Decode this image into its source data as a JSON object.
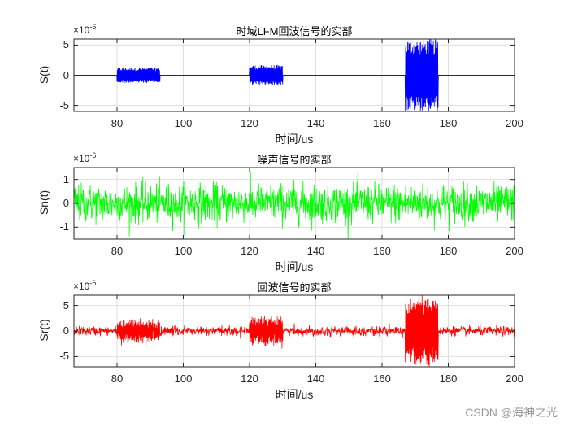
{
  "chart_data": [
    {
      "type": "line",
      "title": "时域LFM回波信号的实部",
      "xlabel": "时间/us",
      "ylabel": "S(t)",
      "y_exponent": "×10^-6",
      "xlim": [
        67,
        200
      ],
      "ylim": [
        -6,
        6
      ],
      "xticks": [
        80,
        100,
        120,
        140,
        160,
        180,
        200
      ],
      "yticks": [
        -5,
        0,
        5
      ],
      "grid": true,
      "color": "#0000ff",
      "description": "Three LFM pulse echoes (noise-free), zero elsewhere",
      "segments": [
        {
          "start_us": 80,
          "end_us": 93,
          "amplitude": 1.3
        },
        {
          "start_us": 120,
          "end_us": 130,
          "amplitude": 1.7
        },
        {
          "start_us": 167,
          "end_us": 177,
          "amplitude": 6.0
        }
      ]
    },
    {
      "type": "line",
      "title": "噪声信号的实部",
      "xlabel": "时间/us",
      "ylabel": "Sn(t)",
      "y_exponent": "×10^-6",
      "xlim": [
        67,
        200
      ],
      "ylim": [
        -1.5,
        1.5
      ],
      "xticks": [
        80,
        100,
        120,
        140,
        160,
        180,
        200
      ],
      "yticks": [
        -1,
        0,
        1
      ],
      "grid": true,
      "color": "#00ff00",
      "description": "Gaussian white noise across whole range, peaks about ±1.4",
      "noise_std": 0.4
    },
    {
      "type": "line",
      "title": "回波信号的实部",
      "xlabel": "时间/us",
      "ylabel": "Sr(t)",
      "y_exponent": "×10^-6",
      "xlim": [
        67,
        200
      ],
      "ylim": [
        -7,
        7
      ],
      "xticks": [
        80,
        100,
        120,
        140,
        160,
        180,
        200
      ],
      "yticks": [
        -5,
        0,
        5
      ],
      "grid": true,
      "color": "#ff0000",
      "description": "Echo signal plus noise",
      "segments": [
        {
          "start_us": 80,
          "end_us": 93,
          "amplitude": 2.0
        },
        {
          "start_us": 120,
          "end_us": 130,
          "amplitude": 2.5
        },
        {
          "start_us": 167,
          "end_us": 177,
          "amplitude": 6.5
        }
      ],
      "noise_amplitude": 1.0
    }
  ],
  "watermark": "CSDN @海神之光"
}
